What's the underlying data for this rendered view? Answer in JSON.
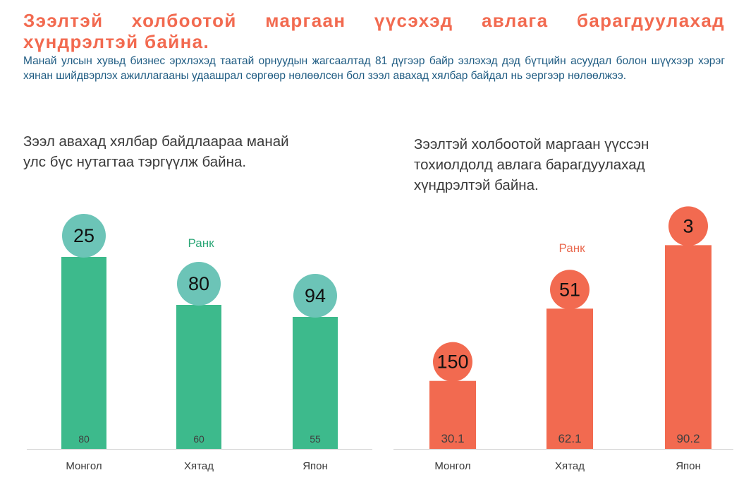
{
  "header": {
    "title": "Зээлтэй холбоотой маргаан үүсэхэд авлага барагдуулахад хүндрэлтэй байна.",
    "description": "Манай улсын хувьд бизнес эрхлэхэд таатай орнуудын жагсаалтад 81 дүгээр байр эзлэхэд дэд бүтцийн асуудал болон шүүхээр хэрэг хянан шийдвэрлэх ажиллагааны удаашрал сөргөөр нөлөөлсөн бол зээл авахад хялбар байдал нь эергээр нөлөөлжээ."
  },
  "colors": {
    "headline": "#f26a50",
    "description": "#1e5b82",
    "green_bar": "#3dba8c",
    "green_circle": "#6cc4b7",
    "green_text": "#2aa676",
    "red_bar": "#f26a50",
    "red_circle": "#f26a50",
    "red_text": "#ea6a50"
  },
  "chart_data": [
    {
      "type": "bar",
      "title": "Зээл авахад хялбар байдлаараа манай улс бүс нутагтаа тэргүүлж байна.",
      "categories": [
        "Монгол",
        "Хятад",
        "Япон"
      ],
      "values": [
        80,
        60,
        55
      ],
      "value_labels": [
        "80",
        "60",
        "55"
      ],
      "ranks": [
        "25",
        "80",
        "94"
      ],
      "rank_label": "Ранк",
      "ylim": [
        0,
        100
      ],
      "color": "green"
    },
    {
      "type": "bar",
      "title": "Зээлтэй холбоотой маргаан үүссэн тохиолдолд авлага барагдуулахад хүндрэлтэй байна.",
      "categories": [
        "Монгол",
        "Хятад",
        "Япон"
      ],
      "values": [
        30.1,
        62.1,
        90.2
      ],
      "value_labels": [
        "30.1",
        "62.1",
        "90.2"
      ],
      "ranks": [
        "150",
        "51",
        "3"
      ],
      "rank_label": "Ранк",
      "ylim": [
        0,
        100
      ],
      "color": "red"
    }
  ]
}
